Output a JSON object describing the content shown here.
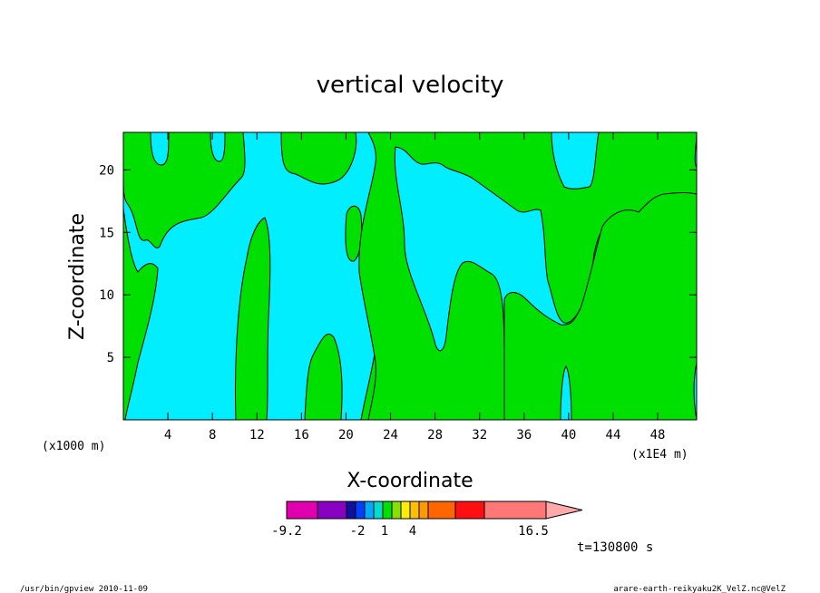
{
  "chart_data": {
    "type": "contour",
    "title": "vertical velocity",
    "xlabel": "X-coordinate",
    "ylabel": "Z-coordinate",
    "x_unit_left": "(x1000 m)",
    "x_unit_right": "(x1E4 m)",
    "x_ticks": [
      "4",
      "8",
      "12",
      "16",
      "20",
      "24",
      "28",
      "32",
      "36",
      "40",
      "44",
      "48"
    ],
    "y_ticks": [
      "5",
      "10",
      "15",
      "20"
    ],
    "xlim": [
      0,
      51.5
    ],
    "ylim": [
      0,
      23
    ],
    "time_label": "t=130800 s",
    "colorbar": {
      "labels": [
        "-9.2",
        "-2",
        "1",
        "4",
        "16.5"
      ],
      "colors": [
        "#e000b0",
        "#8800c0",
        "#1010a0",
        "#0040ff",
        "#00aaff",
        "#00ddcc",
        "#00e000",
        "#88e000",
        "#ffee00",
        "#ffc000",
        "#ff9900",
        "#ff6600",
        "#ff1010",
        "#ff7777",
        "#ffaaaa"
      ]
    },
    "field_colors": {
      "positive": "#00e000",
      "negative": "#00eeff"
    }
  },
  "footer": {
    "left": "/usr/bin/gpview  2010-11-09",
    "right": "arare-earth-reikyaku2K_VelZ.nc@VelZ"
  }
}
